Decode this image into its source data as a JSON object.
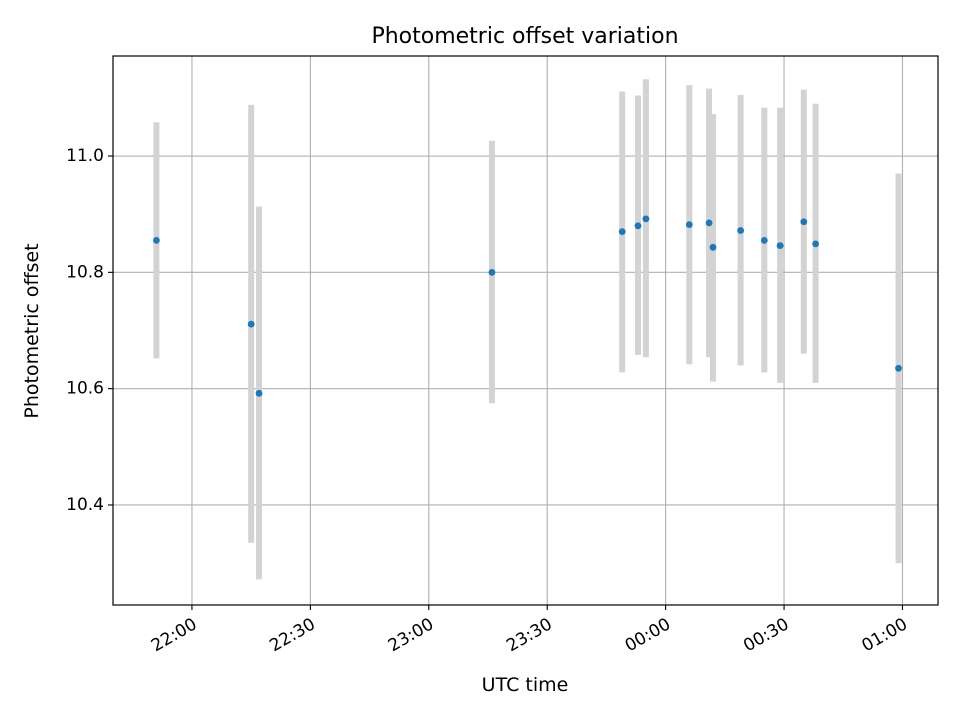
{
  "chart_data": {
    "type": "scatter",
    "title": "Photometric offset variation",
    "xlabel": "UTC time",
    "ylabel": "Photometric offset",
    "x_tick_labels": [
      "22:00",
      "22:30",
      "23:00",
      "23:30",
      "00:00",
      "00:30",
      "01:00"
    ],
    "y_tick_labels": [
      "10.4",
      "10.6",
      "10.8",
      "11.0"
    ],
    "y_ticks": [
      10.4,
      10.6,
      10.8,
      11.0
    ],
    "ylim": [
      10.228,
      11.172
    ],
    "xlim": [
      "21:40",
      "01:09"
    ],
    "grid": true,
    "point_color": "#1f77b4",
    "errorbar_color": "#d3d3d3",
    "points": [
      {
        "time": "21:51",
        "y": 10.855,
        "err_low": 10.652,
        "err_high": 11.058
      },
      {
        "time": "22:15",
        "y": 10.711,
        "err_low": 10.335,
        "err_high": 11.088
      },
      {
        "time": "22:17",
        "y": 10.592,
        "err_low": 10.272,
        "err_high": 10.913
      },
      {
        "time": "23:16",
        "y": 10.8,
        "err_low": 10.575,
        "err_high": 11.026
      },
      {
        "time": "23:49",
        "y": 10.87,
        "err_low": 10.628,
        "err_high": 11.111
      },
      {
        "time": "23:53",
        "y": 10.88,
        "err_low": 10.658,
        "err_high": 11.104
      },
      {
        "time": "23:55",
        "y": 10.892,
        "err_low": 10.654,
        "err_high": 11.132
      },
      {
        "time": "00:06",
        "y": 10.882,
        "err_low": 10.642,
        "err_high": 11.122
      },
      {
        "time": "00:11",
        "y": 10.885,
        "err_low": 10.654,
        "err_high": 11.116
      },
      {
        "time": "00:12",
        "y": 10.843,
        "err_low": 10.612,
        "err_high": 11.072
      },
      {
        "time": "00:19",
        "y": 10.872,
        "err_low": 10.64,
        "err_high": 11.105
      },
      {
        "time": "00:25",
        "y": 10.855,
        "err_low": 10.628,
        "err_high": 11.083
      },
      {
        "time": "00:29",
        "y": 10.846,
        "err_low": 10.61,
        "err_high": 11.083
      },
      {
        "time": "00:35",
        "y": 10.887,
        "err_low": 10.66,
        "err_high": 11.114
      },
      {
        "time": "00:38",
        "y": 10.849,
        "err_low": 10.61,
        "err_high": 11.09
      },
      {
        "time": "00:59",
        "y": 10.635,
        "err_low": 10.3,
        "err_high": 10.97
      }
    ]
  }
}
